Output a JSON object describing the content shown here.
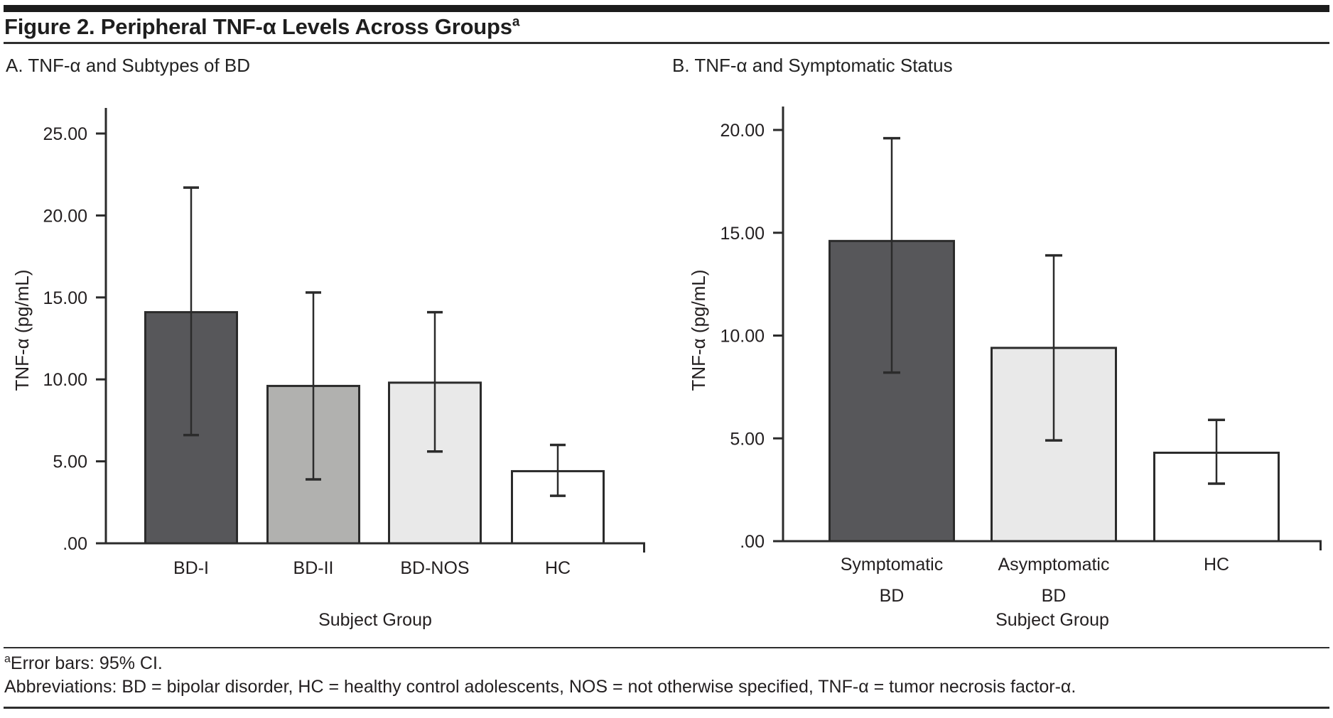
{
  "figure": {
    "title": "Figure 2. Peripheral TNF-α Levels Across Groups",
    "title_superscript": "a"
  },
  "footnotes": {
    "marker": "a",
    "error_bars_note": "Error bars: 95% CI.",
    "abbreviations": "Abbreviations: BD = bipolar disorder, HC = healthy control adolescents, NOS = not otherwise specified, TNF-α = tumor necrosis factor-α."
  },
  "colors": {
    "line": "#2b2b2b",
    "text": "#231f20",
    "rule": "#2d2d2d"
  },
  "chart_data": [
    {
      "type": "bar",
      "panel_label": "A. TNF-α and Subtypes of BD",
      "title": "TNF-α and Subtypes of BD",
      "categories": [
        "BD-I",
        "BD-II",
        "BD-NOS",
        "HC"
      ],
      "category_lines": [
        [
          "BD-I"
        ],
        [
          "BD-II"
        ],
        [
          "BD-NOS"
        ],
        [
          "HC"
        ]
      ],
      "values": [
        14.1,
        9.6,
        9.8,
        4.4
      ],
      "ci_low": [
        6.6,
        3.9,
        5.6,
        2.9
      ],
      "ci_high": [
        21.7,
        15.3,
        14.1,
        6.0
      ],
      "error_bar_meaning": "95% CI",
      "bar_colors": [
        "#57575a",
        "#b1b1af",
        "#e9e9e9",
        "#ffffff"
      ],
      "xlabel": "Subject Group",
      "ylabel": "TNF-α (pg/mL)",
      "yticks": [
        ".00",
        "5.00",
        "10.00",
        "15.00",
        "20.00",
        "25.00"
      ],
      "ytick_values": [
        0,
        5,
        10,
        15,
        20,
        25
      ],
      "ylim": [
        0,
        26.5
      ],
      "grid": false,
      "legend": "none"
    },
    {
      "type": "bar",
      "panel_label": "B. TNF-α and Symptomatic Status",
      "title": "TNF-α and Symptomatic Status",
      "categories": [
        "Symptomatic BD",
        "Asymptomatic BD",
        "HC"
      ],
      "category_lines": [
        [
          "Symptomatic",
          "BD"
        ],
        [
          "Asymptomatic",
          "BD"
        ],
        [
          "HC"
        ]
      ],
      "values": [
        14.6,
        9.4,
        4.3
      ],
      "ci_low": [
        8.2,
        4.9,
        2.8
      ],
      "ci_high": [
        19.6,
        13.9,
        5.9
      ],
      "error_bar_meaning": "95% CI",
      "bar_colors": [
        "#57575a",
        "#e9e9e9",
        "#ffffff"
      ],
      "xlabel": "Subject Group",
      "ylabel": "TNF-α (pg/mL)",
      "yticks": [
        ".00",
        "5.00",
        "10.00",
        "15.00",
        "20.00"
      ],
      "ytick_values": [
        0,
        5,
        10,
        15,
        20
      ],
      "ylim": [
        0,
        21.2
      ],
      "grid": false,
      "legend": "none"
    }
  ]
}
